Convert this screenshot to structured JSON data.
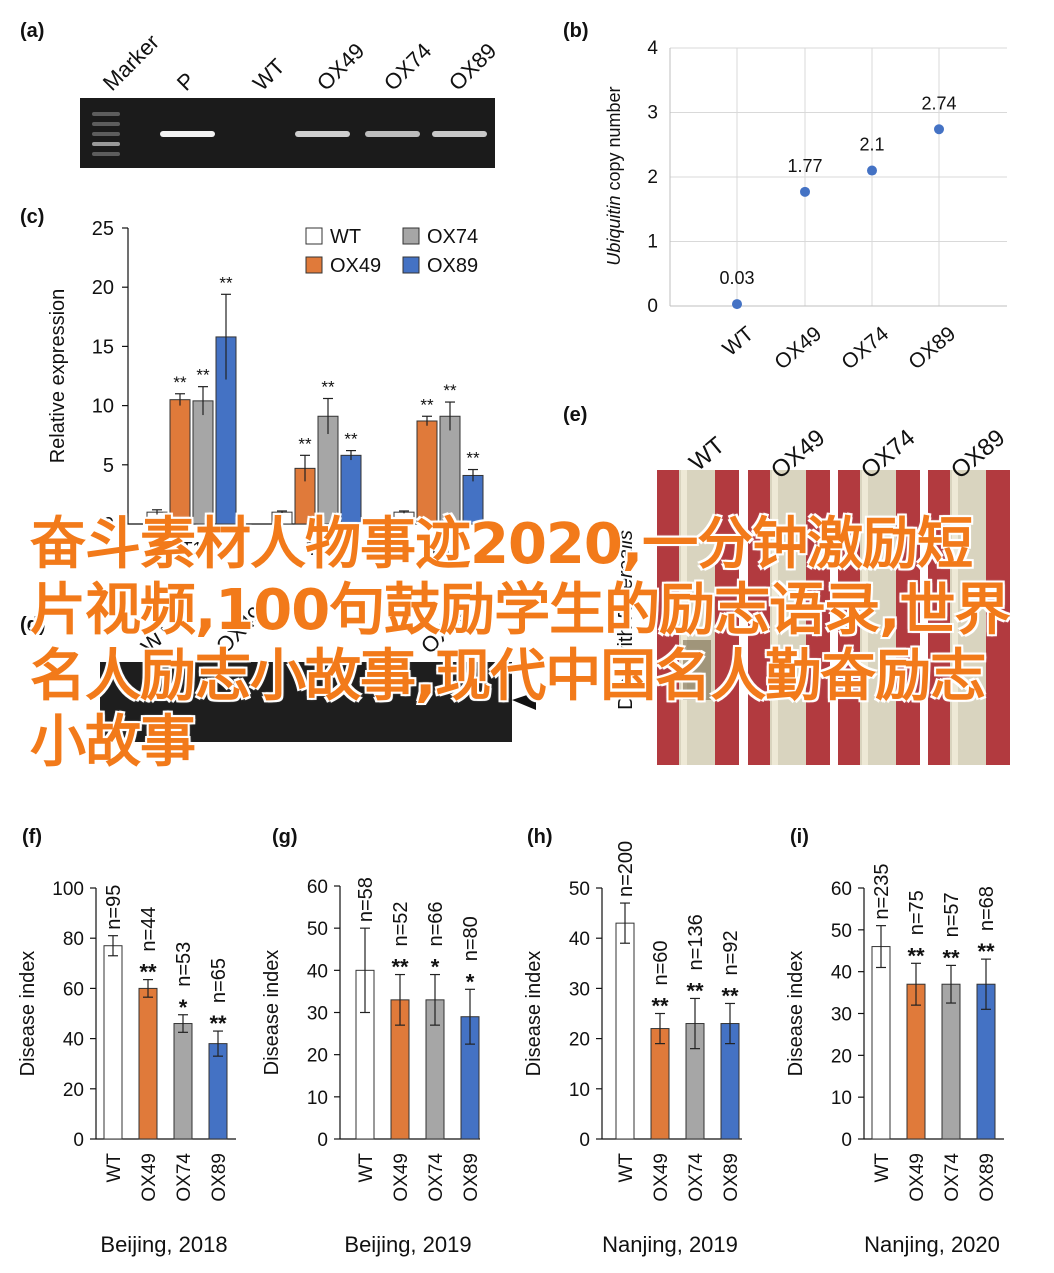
{
  "panels": {
    "a": {
      "label": "(a)",
      "lanes": [
        "Marker",
        "P",
        "WT",
        "OX49",
        "OX74",
        "OX89"
      ]
    },
    "b": {
      "label": "(b)",
      "chart_data": {
        "type": "scatter",
        "ylabel_italic": "Ubiquitin",
        "ylabel_rest": " copy number",
        "categories": [
          "WT",
          "OX49",
          "OX74",
          "OX89"
        ],
        "values": [
          0.03,
          1.77,
          2.1,
          2.74
        ],
        "data_labels": [
          "0.03",
          "1.77",
          "2.1",
          "2.74"
        ],
        "ylim": [
          0,
          4
        ],
        "yticks": [
          "0",
          "1",
          "2",
          "3",
          "4"
        ],
        "grid": true,
        "color": "#4472c4"
      }
    },
    "c": {
      "label": "(c)",
      "chart_data": {
        "type": "bar",
        "ylabel": "Relative expression",
        "ylim": [
          0,
          25
        ],
        "yticks": [
          "0",
          "5",
          "10",
          "15",
          "20",
          "25"
        ],
        "groups": [
          "T1",
          "T2",
          "T3"
        ],
        "series": [
          {
            "name": "WT",
            "color": "#ffffff",
            "values": [
              1.0,
              1.0,
              1.0
            ],
            "errors": [
              0.2,
              0.1,
              0.1
            ],
            "sig": [
              "",
              "",
              ""
            ]
          },
          {
            "name": "OX49",
            "color": "#e07a3a",
            "values": [
              10.5,
              4.7,
              8.7
            ],
            "errors": [
              0.5,
              1.1,
              0.4
            ],
            "sig": [
              "**",
              "**",
              "**"
            ]
          },
          {
            "name": "OX74",
            "color": "#a6a6a6",
            "values": [
              10.4,
              9.1,
              9.1
            ],
            "errors": [
              1.2,
              1.5,
              1.2
            ],
            "sig": [
              "**",
              "**",
              "**"
            ]
          },
          {
            "name": "OX89",
            "color": "#4472c4",
            "values": [
              15.8,
              5.8,
              4.1
            ],
            "errors": [
              3.6,
              0.4,
              0.5
            ],
            "sig": [
              "**",
              "**",
              "**"
            ]
          }
        ]
      }
    },
    "d": {
      "label": "(d)",
      "lanes": [
        "WT",
        "OX49",
        "OX89"
      ]
    },
    "e": {
      "label": "(e)",
      "lanes": [
        "WT",
        "OX49",
        "OX74",
        "OX89"
      ],
      "side_label_prefix": "Drop with ",
      "side_label_species": "F. cerealis"
    },
    "small_charts": [
      {
        "label": "(f)",
        "title": "Beijing, 2018",
        "ylabel": "Disease index",
        "ylim": [
          0,
          100
        ],
        "yticks": [
          "0",
          "20",
          "40",
          "60",
          "80",
          "100"
        ],
        "categories": [
          "WT",
          "OX49",
          "OX74",
          "OX89"
        ],
        "values": [
          77,
          60,
          46,
          38
        ],
        "errors": [
          4,
          3.5,
          3.5,
          5
        ],
        "n": [
          "n=95",
          "n=44",
          "n=53",
          "n=65"
        ],
        "sig": [
          "",
          "**",
          "*",
          "**"
        ]
      },
      {
        "label": "(g)",
        "title": "Beijing, 2019",
        "ylabel": "Disease index",
        "ylim": [
          0,
          60
        ],
        "yticks": [
          "0",
          "10",
          "20",
          "30",
          "40",
          "50",
          "60"
        ],
        "categories": [
          "WT",
          "OX49",
          "OX74",
          "OX89"
        ],
        "values": [
          40,
          33,
          33,
          29
        ],
        "errors": [
          10,
          6,
          6,
          6.5
        ],
        "n": [
          "n=58",
          "n=52",
          "n=66",
          "n=80"
        ],
        "sig": [
          "",
          "**",
          "*",
          "*"
        ]
      },
      {
        "label": "(h)",
        "title": "Nanjing, 2019",
        "ylabel": "Disease index",
        "ylim": [
          0,
          50
        ],
        "yticks": [
          "0",
          "10",
          "20",
          "30",
          "40",
          "50"
        ],
        "categories": [
          "WT",
          "OX49",
          "OX74",
          "OX89"
        ],
        "values": [
          43,
          22,
          23,
          23
        ],
        "errors": [
          4,
          3,
          5,
          4
        ],
        "n": [
          "n=200",
          "n=60",
          "n=136",
          "n=92"
        ],
        "sig": [
          "",
          "**",
          "**",
          "**"
        ]
      },
      {
        "label": "(i)",
        "title": "Nanjing, 2020",
        "ylabel": "Disease index",
        "ylim": [
          0,
          60
        ],
        "yticks": [
          "0",
          "10",
          "20",
          "30",
          "40",
          "50",
          "60"
        ],
        "categories": [
          "WT",
          "OX49",
          "OX74",
          "OX89"
        ],
        "values": [
          46,
          37,
          37,
          37
        ],
        "errors": [
          5,
          5,
          4.5,
          6
        ],
        "n": [
          "n=235",
          "n=75",
          "n=57",
          "n=68"
        ],
        "sig": [
          "",
          "**",
          "**",
          "**"
        ]
      }
    ]
  },
  "bar_colors": [
    "#ffffff",
    "#e07a3a",
    "#a6a6a6",
    "#4472c4"
  ],
  "overlay_text": "奋斗素材人物事迹2020,一分钟激励短片视频,100句鼓励学生的励志语录,世界名人励志小故事,现代中国名人勤奋励志小故事"
}
